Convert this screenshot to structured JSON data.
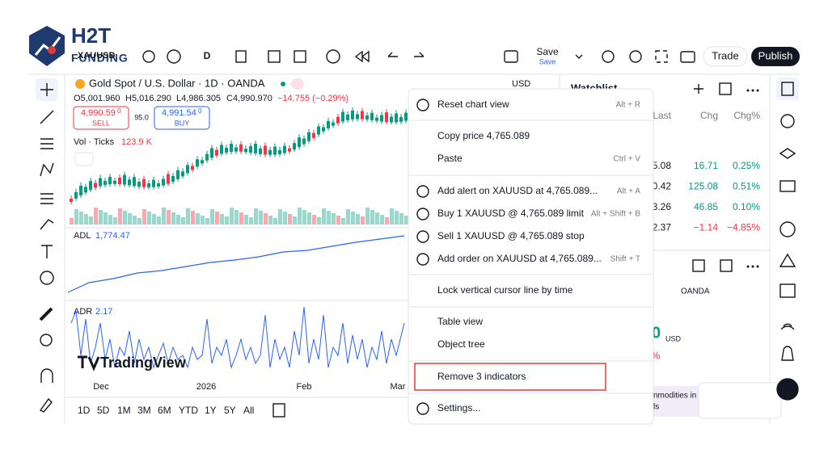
{
  "logo": {
    "title": "H2T",
    "subtitle": "FUNDING"
  },
  "toolbar": {
    "symbol": "XAUUSD",
    "interval": "D",
    "save": "Save",
    "save_sub": "Save",
    "trade": "Trade",
    "publish": "Publish"
  },
  "chart": {
    "title": "Gold Spot / U.S. Dollar · 1D · OANDA",
    "open": "O5,001.960",
    "high": "H5,016.290",
    "low": "L4,986.305",
    "close": "C4,990.970",
    "change": "−14.755 (−0.29%)",
    "currency": "USD",
    "sell_price": "4,990.59",
    "sell_price_tail": "0",
    "sell": "SELL",
    "spread": "95.0",
    "buy_price": "4,991.54",
    "buy_price_tail": "0",
    "buy": "BUY",
    "volume_label": "Vol · Ticks",
    "volume_value": "123.9 K",
    "adl_label": "ADL",
    "adl_value": "1,774.47",
    "adr_label": "ADR",
    "adr_value": "2.17",
    "brand": "TradingView",
    "time_labels": [
      "Dec",
      "2026",
      "Feb",
      "Mar"
    ],
    "ranges": [
      "1D",
      "5D",
      "1M",
      "3M",
      "6M",
      "YTD",
      "1Y",
      "5Y",
      "All"
    ]
  },
  "menu": [
    {
      "label": "Reset chart view",
      "shortcut": "Alt + R"
    },
    {
      "label": "Copy price 4,765.089",
      "shortcut": ""
    },
    {
      "label": "Paste",
      "shortcut": "Ctrl + V"
    },
    {
      "label": "Add alert on XAUUSD at 4,765.089...",
      "shortcut": "Alt + A"
    },
    {
      "label": "Buy 1 XAUUSD @ 4,765.089 limit",
      "shortcut": "Alt + Shift + B"
    },
    {
      "label": "Sell 1 XAUUSD @ 4,765.089 stop",
      "shortcut": ""
    },
    {
      "label": "Add order on XAUUSD at 4,765.089...",
      "shortcut": "Shift + T"
    },
    {
      "label": "Lock vertical cursor line by time",
      "shortcut": ""
    },
    {
      "label": "Table view",
      "shortcut": ""
    },
    {
      "label": "Object tree",
      "shortcut": ""
    },
    {
      "label": "Remove 3 indicators",
      "shortcut": ""
    },
    {
      "label": "Settings...",
      "shortcut": ""
    }
  ],
  "watchlist": {
    "title": "Watchlist",
    "headers": [
      "Last",
      "Chg",
      "Chg%"
    ],
    "rows": [
      [
        "5.08",
        "16.71",
        "0.25%"
      ],
      [
        "0.42",
        "125.08",
        "0.51%"
      ],
      [
        "3.26",
        "46.85",
        "0.10%"
      ],
      [
        "2.37",
        "−1.14",
        "−4.85%"
      ]
    ]
  },
  "details": {
    "exchange": "OANDA",
    "price_tail": "0",
    "currency": "USD",
    "percent": "%",
    "news_line1": "nmodities in",
    "news_line2": "ls"
  }
}
